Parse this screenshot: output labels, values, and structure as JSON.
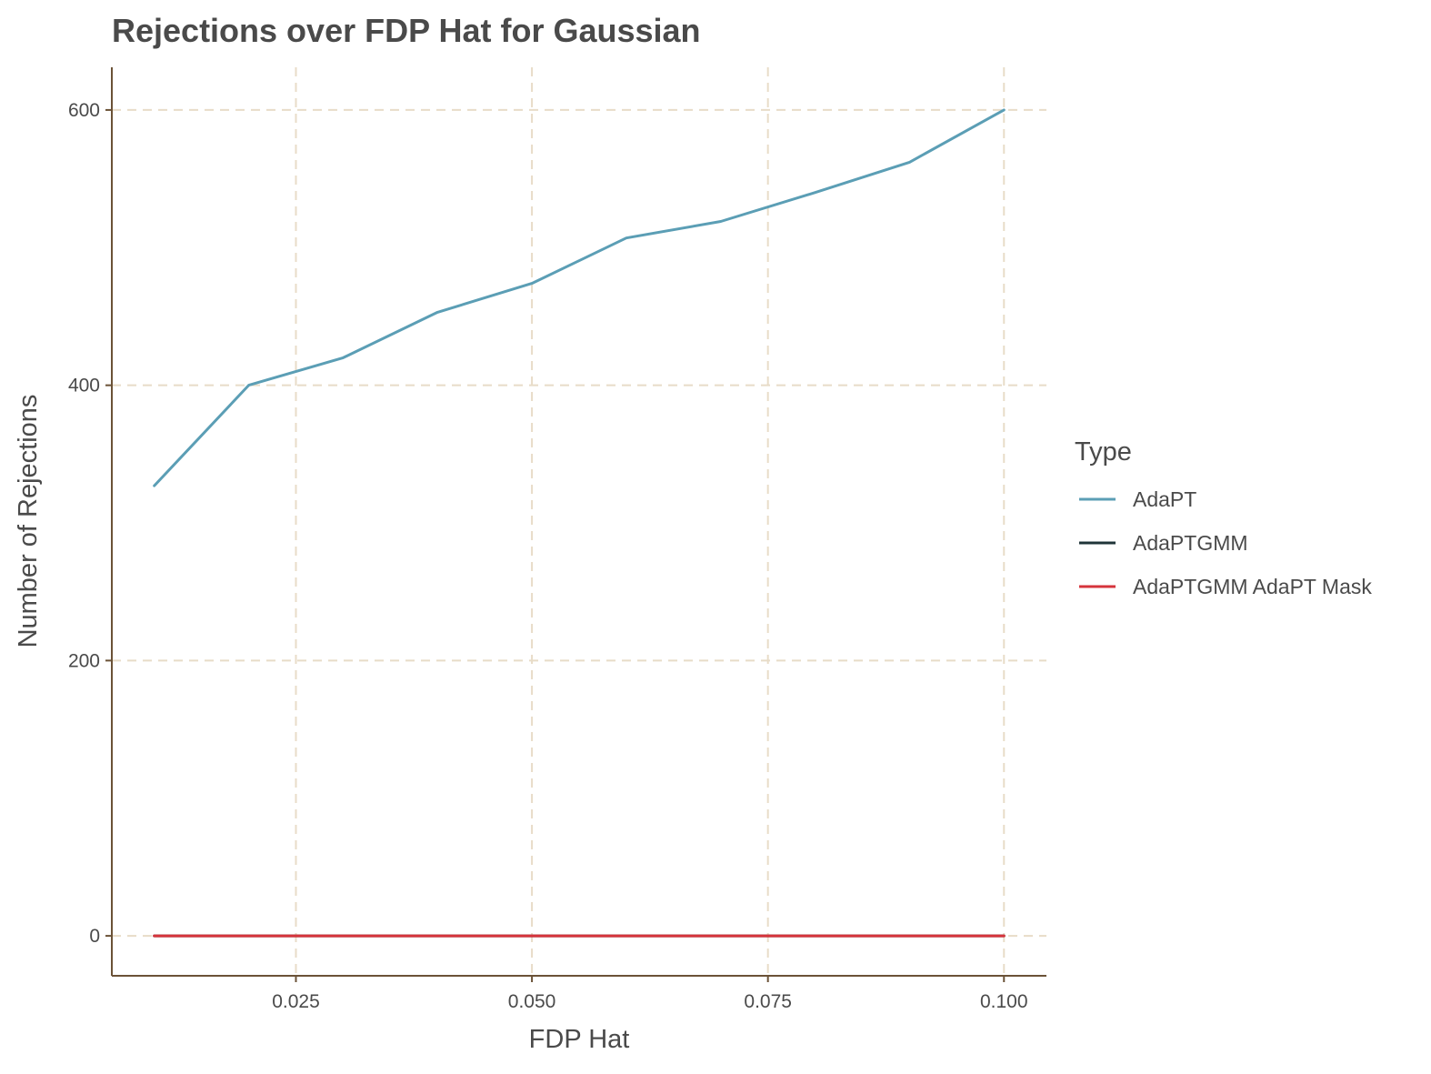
{
  "chart_data": {
    "type": "line",
    "title": "Rejections over FDP Hat for Gaussian",
    "xlabel": "FDP Hat",
    "ylabel": "Number of Rejections",
    "xlim": [
      0.0055,
      0.1045
    ],
    "ylim": [
      -29,
      631
    ],
    "xticks": [
      0.025,
      0.05,
      0.075,
      0.1
    ],
    "xtick_labels": [
      "0.025",
      "0.050",
      "0.075",
      "0.100"
    ],
    "yticks": [
      0,
      200,
      400,
      600
    ],
    "ytick_labels": [
      "0",
      "200",
      "400",
      "600"
    ],
    "grid": true,
    "legend": {
      "title": "Type",
      "position": "right"
    },
    "x": [
      0.01,
      0.02,
      0.03,
      0.04,
      0.05,
      0.06,
      0.07,
      0.08,
      0.09,
      0.1
    ],
    "series": [
      {
        "name": "AdaPT",
        "color": "#5b9eb5",
        "values": [
          327,
          400,
          420,
          453,
          474,
          507,
          519,
          540,
          562,
          600
        ]
      },
      {
        "name": "AdaPTGMM",
        "color": "#1f3438",
        "values": [
          0,
          0,
          0,
          0,
          0,
          0,
          0,
          0,
          0,
          0
        ]
      },
      {
        "name": "AdaPTGMM AdaPT Mask",
        "color": "#d6343c",
        "values": [
          0,
          0,
          0,
          0,
          0,
          0,
          0,
          0,
          0,
          0
        ]
      }
    ]
  }
}
